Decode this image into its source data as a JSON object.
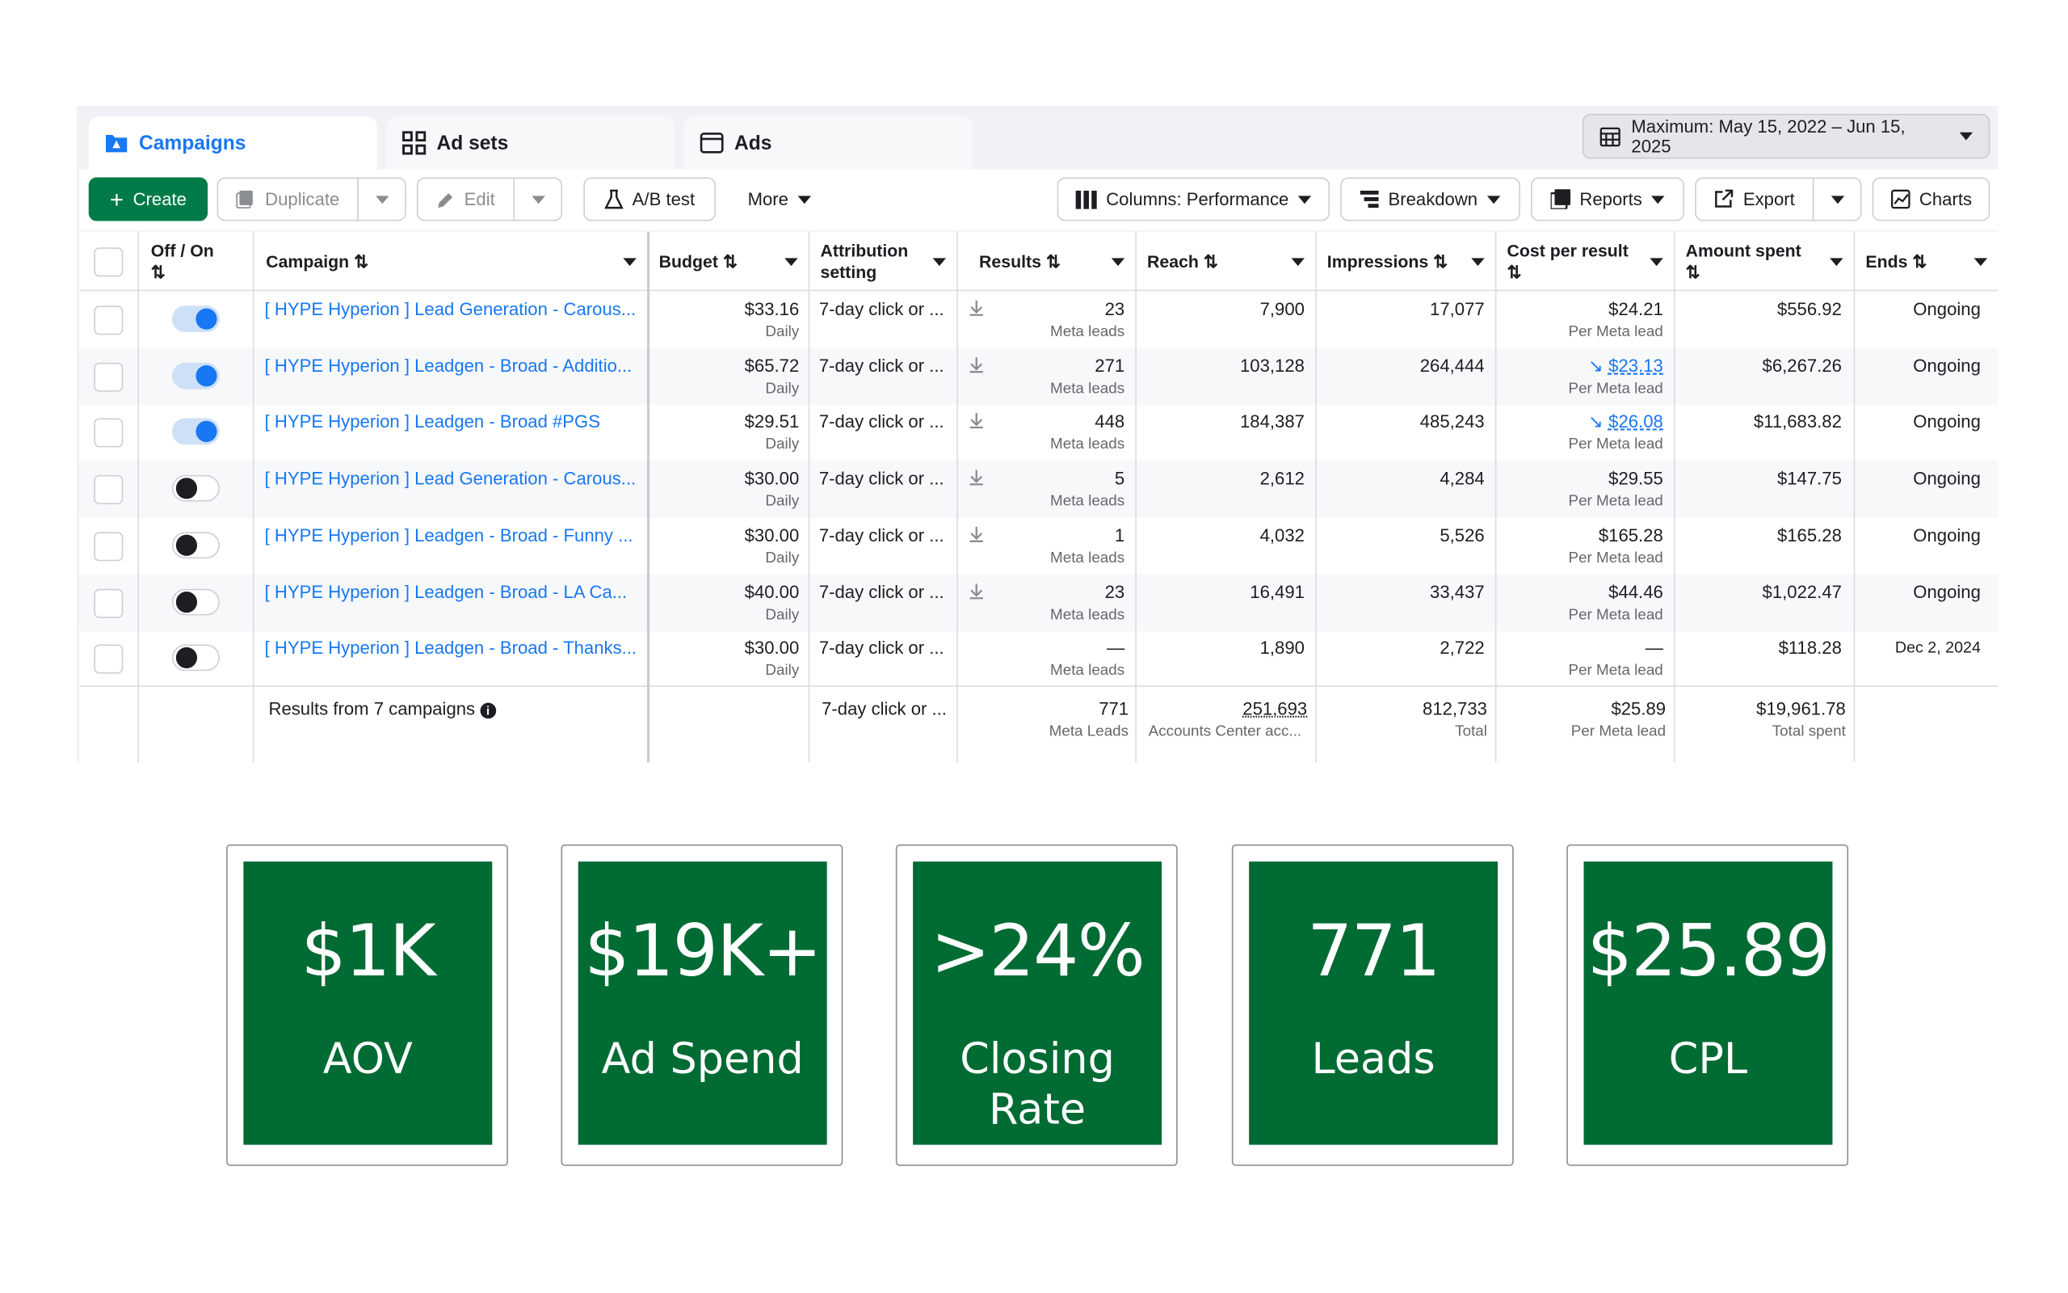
{
  "tabs": [
    {
      "label": "Campaigns"
    },
    {
      "label": "Ad sets"
    },
    {
      "label": "Ads"
    }
  ],
  "date_range": "Maximum: May 15, 2022 – Jun 15, 2025",
  "toolbar": {
    "create": "Create",
    "duplicate": "Duplicate",
    "edit": "Edit",
    "ab_test": "A/B test",
    "more": "More",
    "columns": "Columns: Performance",
    "breakdown": "Breakdown",
    "reports": "Reports",
    "export": "Export",
    "charts": "Charts"
  },
  "columns": {
    "toggle": "Off / On",
    "campaign": "Campaign",
    "budget": "Budget",
    "attribution": "Attribution",
    "attribution2": "setting",
    "results": "Results",
    "reach": "Reach",
    "impressions": "Impressions",
    "cpr": "Cost per result",
    "spent": "Amount spent",
    "ends": "Ends"
  },
  "rows": [
    {
      "on": true,
      "campaign": "[ HYPE Hyperion ] Lead Generation - Carous...",
      "budget": "$33.16",
      "budget_sub": "Daily",
      "attr": "7-day click or ...",
      "results": "23",
      "results_sub": "Meta leads",
      "reach": "7,900",
      "impr": "17,077",
      "cpr": "$24.21",
      "cpr_sub": "Per Meta lead",
      "spent": "$556.92",
      "ends": "Ongoing"
    },
    {
      "on": true,
      "campaign": "[ HYPE Hyperion ] Leadgen - Broad - Additio...",
      "budget": "$65.72",
      "budget_sub": "Daily",
      "attr": "7-day click or ...",
      "results": "271",
      "results_sub": "Meta leads",
      "reach": "103,128",
      "impr": "264,444",
      "cpr": "$23.13",
      "cpr_sub": "Per Meta lead",
      "spent": "$6,267.26",
      "ends": "Ongoing"
    },
    {
      "on": true,
      "campaign": "[ HYPE Hyperion ] Leadgen - Broad #PGS",
      "budget": "$29.51",
      "budget_sub": "Daily",
      "attr": "7-day click or ...",
      "results": "448",
      "results_sub": "Meta leads",
      "reach": "184,387",
      "impr": "485,243",
      "cpr": "$26.08",
      "cpr_sub": "Per Meta lead",
      "spent": "$11,683.82",
      "ends": "Ongoing"
    },
    {
      "on": false,
      "campaign": "[ HYPE Hyperion ] Lead Generation - Carous...",
      "budget": "$30.00",
      "budget_sub": "Daily",
      "attr": "7-day click or ...",
      "results": "5",
      "results_sub": "Meta leads",
      "reach": "2,612",
      "impr": "4,284",
      "cpr": "$29.55",
      "cpr_sub": "Per Meta lead",
      "spent": "$147.75",
      "ends": "Ongoing"
    },
    {
      "on": false,
      "campaign": "[ HYPE Hyperion ] Leadgen - Broad - Funny ...",
      "budget": "$30.00",
      "budget_sub": "Daily",
      "attr": "7-day click or ...",
      "results": "1",
      "results_sub": "Meta leads",
      "reach": "4,032",
      "impr": "5,526",
      "cpr": "$165.28",
      "cpr_sub": "Per Meta lead",
      "spent": "$165.28",
      "ends": "Ongoing"
    },
    {
      "on": false,
      "campaign": "[ HYPE Hyperion ] Leadgen - Broad - LA Ca...",
      "budget": "$40.00",
      "budget_sub": "Daily",
      "attr": "7-day click or ...",
      "results": "23",
      "results_sub": "Meta leads",
      "reach": "16,491",
      "impr": "33,437",
      "cpr": "$44.46",
      "cpr_sub": "Per Meta lead",
      "spent": "$1,022.47",
      "ends": "Ongoing"
    },
    {
      "on": false,
      "campaign": "[ HYPE Hyperion ] Leadgen - Broad - Thanks...",
      "budget": "$30.00",
      "budget_sub": "Daily",
      "attr": "7-day click or ...",
      "results": "—",
      "results_sub": "Meta leads",
      "reach": "1,890",
      "impr": "2,722",
      "cpr": "—",
      "cpr_sub": "Per Meta lead",
      "spent": "$118.28",
      "ends": "Dec 2, 2024"
    }
  ],
  "totals": {
    "label": "Results from 7 campaigns",
    "attr": "7-day click or ...",
    "results": "771",
    "results_sub": "Meta Leads",
    "reach": "251,693",
    "reach_sub": "Accounts Center acc...",
    "impr": "812,733",
    "impr_sub": "Total",
    "cpr": "$25.89",
    "cpr_sub": "Per Meta lead",
    "spent": "$19,961.78",
    "spent_sub": "Total spent"
  },
  "cards": [
    {
      "value": "$1K",
      "label": "AOV"
    },
    {
      "value": "$19K+",
      "label": "Ad Spend"
    },
    {
      "value": ">24%",
      "label": "Closing Rate"
    },
    {
      "value": "771",
      "label": "Leads"
    },
    {
      "value": "$25.89",
      "label": "CPL"
    }
  ],
  "colors": {
    "accent": "#1877f2",
    "green": "#007b48",
    "card": "#006b33"
  }
}
